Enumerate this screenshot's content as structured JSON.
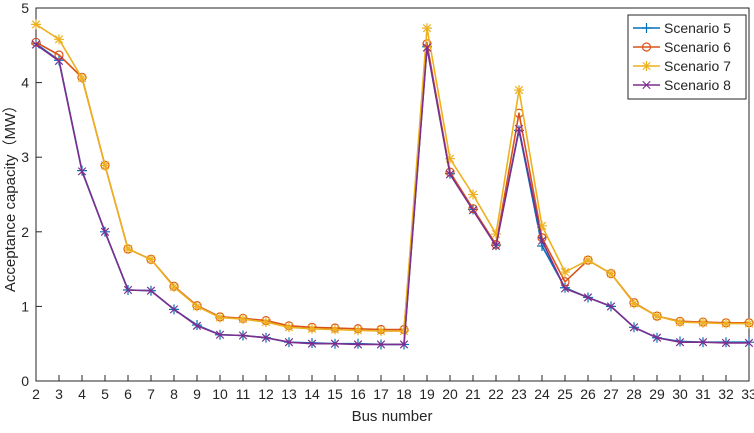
{
  "chart_data": {
    "type": "line",
    "title": "",
    "xlabel": "Bus number",
    "ylabel": "Acceptance capacity（MW）",
    "x": [
      2,
      3,
      4,
      5,
      6,
      7,
      8,
      9,
      10,
      11,
      12,
      13,
      14,
      15,
      16,
      17,
      18,
      19,
      20,
      21,
      22,
      23,
      24,
      25,
      26,
      27,
      28,
      29,
      30,
      31,
      32,
      33
    ],
    "xlim": [
      2,
      33
    ],
    "ylim": [
      0,
      5
    ],
    "xticks": [
      2,
      3,
      4,
      5,
      6,
      7,
      8,
      9,
      10,
      11,
      12,
      13,
      14,
      15,
      16,
      17,
      18,
      19,
      20,
      21,
      22,
      23,
      24,
      25,
      26,
      27,
      28,
      29,
      30,
      31,
      32,
      33
    ],
    "yticks": [
      0,
      1,
      2,
      3,
      4,
      5
    ],
    "grid": false,
    "legend_position": "top-right",
    "series": [
      {
        "name": "Scenario 5",
        "color": "#0072BD",
        "marker": "plus",
        "values": [
          4.52,
          4.3,
          2.82,
          2.0,
          1.22,
          1.21,
          0.96,
          0.75,
          0.62,
          0.61,
          0.58,
          0.52,
          0.51,
          0.5,
          0.5,
          0.49,
          0.49,
          4.48,
          2.78,
          2.3,
          1.82,
          3.36,
          1.81,
          1.25,
          1.12,
          1.0,
          0.72,
          0.58,
          0.53,
          0.52,
          0.52,
          0.52
        ]
      },
      {
        "name": "Scenario 6",
        "color": "#D95319",
        "marker": "circle",
        "values": [
          4.54,
          4.37,
          4.07,
          2.89,
          1.77,
          1.63,
          1.27,
          1.01,
          0.86,
          0.84,
          0.81,
          0.74,
          0.72,
          0.71,
          0.7,
          0.69,
          0.69,
          4.52,
          2.8,
          2.31,
          1.83,
          3.59,
          1.92,
          1.33,
          1.62,
          1.44,
          1.05,
          0.87,
          0.8,
          0.79,
          0.78,
          0.78
        ]
      },
      {
        "name": "Scenario 7",
        "color": "#EDB120",
        "marker": "star",
        "values": [
          4.78,
          4.58,
          4.06,
          2.89,
          1.77,
          1.63,
          1.26,
          1.0,
          0.85,
          0.83,
          0.79,
          0.72,
          0.7,
          0.69,
          0.68,
          0.67,
          0.67,
          4.73,
          2.98,
          2.5,
          1.97,
          3.9,
          2.08,
          1.46,
          1.62,
          1.44,
          1.04,
          0.87,
          0.79,
          0.78,
          0.77,
          0.77
        ]
      },
      {
        "name": "Scenario 8",
        "color": "#7E2F8E",
        "marker": "cross",
        "values": [
          4.51,
          4.29,
          2.81,
          2.0,
          1.22,
          1.21,
          0.96,
          0.74,
          0.62,
          0.61,
          0.58,
          0.52,
          0.5,
          0.5,
          0.49,
          0.49,
          0.49,
          4.47,
          2.77,
          2.29,
          1.81,
          3.38,
          1.88,
          1.24,
          1.12,
          1.0,
          0.72,
          0.58,
          0.52,
          0.52,
          0.51,
          0.51
        ]
      }
    ]
  }
}
